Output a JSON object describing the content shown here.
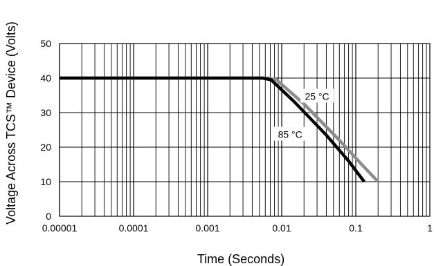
{
  "chart_data": {
    "type": "line",
    "xlabel": "Time (Seconds)",
    "ylabel": "Voltage Across TCS™ Device (Volts)",
    "xscale": "log",
    "xlim": [
      1e-05,
      1
    ],
    "ylim": [
      0,
      50
    ],
    "grid": true,
    "x_tick_labels": [
      "0.00001",
      "0.0001",
      "0.001",
      "0.01",
      "0.1",
      "1"
    ],
    "x_ticks": [
      1e-05,
      0.0001,
      0.001,
      0.01,
      0.1,
      1
    ],
    "y_tick_labels": [
      "0",
      "10",
      "20",
      "30",
      "40",
      "50"
    ],
    "y_ticks": [
      0,
      10,
      20,
      30,
      40,
      50
    ],
    "series": [
      {
        "name": "25 °C",
        "color": "#8c8c8c",
        "points": [
          [
            1e-05,
            40
          ],
          [
            0.0065,
            40
          ],
          [
            0.0085,
            39.5
          ],
          [
            0.02,
            32.5
          ],
          [
            0.06,
            22
          ],
          [
            0.12,
            15
          ],
          [
            0.2,
            10
          ]
        ]
      },
      {
        "name": "85 °C",
        "color": "#000000",
        "points": [
          [
            1e-05,
            40
          ],
          [
            0.0055,
            40
          ],
          [
            0.0072,
            39.5
          ],
          [
            0.015,
            33
          ],
          [
            0.04,
            23.5
          ],
          [
            0.08,
            16
          ],
          [
            0.13,
            10
          ]
        ]
      }
    ],
    "annotations": [
      {
        "text": "25 °C",
        "x": 0.03,
        "y": 34.5
      },
      {
        "text": "85 °C",
        "x": 0.013,
        "y": 23.5
      }
    ]
  }
}
